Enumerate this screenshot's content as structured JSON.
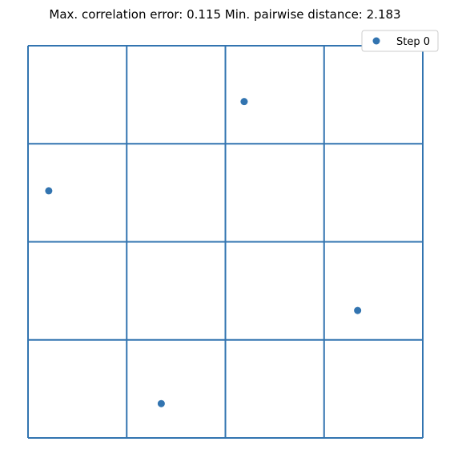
{
  "chart_data": {
    "type": "scatter",
    "title": "Max. correlation error: 0.115 Min. pairwise distance: 2.183",
    "xlabel": "",
    "ylabel": "",
    "xlim": [
      0,
      4
    ],
    "ylim": [
      0,
      4
    ],
    "axes_visible": false,
    "grid": {
      "lines_at": [
        0,
        1,
        2,
        3,
        4
      ],
      "color": "#3274b0"
    },
    "legend": {
      "placement": "top-right",
      "entries": [
        "Step 0"
      ]
    },
    "series": [
      {
        "name": "Step 0",
        "color": "#3274b0",
        "points": [
          {
            "x": 2.19,
            "y": 3.43
          },
          {
            "x": 0.21,
            "y": 2.52
          },
          {
            "x": 3.34,
            "y": 1.3
          },
          {
            "x": 1.35,
            "y": 0.35
          }
        ]
      }
    ]
  }
}
